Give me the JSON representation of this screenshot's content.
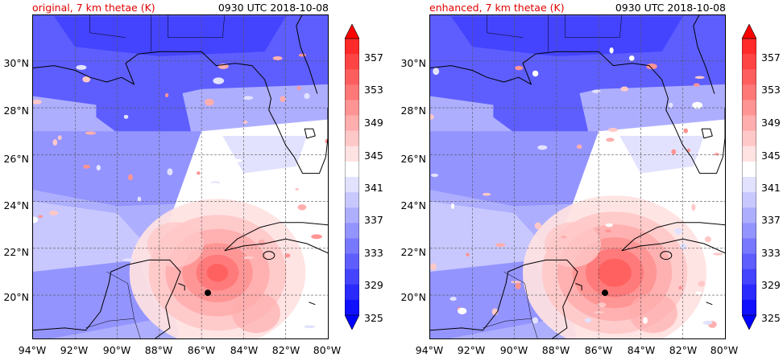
{
  "palette": {
    "levels": [
      "#1010ff",
      "#2a2aff",
      "#4444ff",
      "#5e5eff",
      "#7878ff",
      "#9494ff",
      "#aeaeff",
      "#c8c8ff",
      "#e2e2ff",
      "#ffffff",
      "#ffe2e2",
      "#ffc8c8",
      "#ffaeae",
      "#ff9494",
      "#ff7878",
      "#ff5e5e",
      "#ff4444",
      "#ff2a2a"
    ],
    "under": "#0000ff",
    "over": "#ff0000",
    "coast": "#000000",
    "grid": "#555555"
  },
  "lat_labels": [
    "30°N",
    "28°N",
    "26°N",
    "24°N",
    "22°N",
    "20°N"
  ],
  "lon_labels": [
    "94°W",
    "92°W",
    "90°W",
    "88°W",
    "86°W",
    "84°W",
    "82°W",
    "80°W"
  ],
  "colorbar_labels": [
    "357",
    "353",
    "349",
    "345",
    "341",
    "337",
    "333",
    "329",
    "325"
  ],
  "panels": [
    {
      "title": "original, 7 km thetae (K)",
      "time": "0930 UTC 2018-10-08"
    },
    {
      "title": "enhanced, 7 km thetae (K)",
      "time": "0930 UTC 2018-10-08"
    }
  ],
  "storm_center": {
    "lat": 20.1,
    "lon": -85.7
  }
}
